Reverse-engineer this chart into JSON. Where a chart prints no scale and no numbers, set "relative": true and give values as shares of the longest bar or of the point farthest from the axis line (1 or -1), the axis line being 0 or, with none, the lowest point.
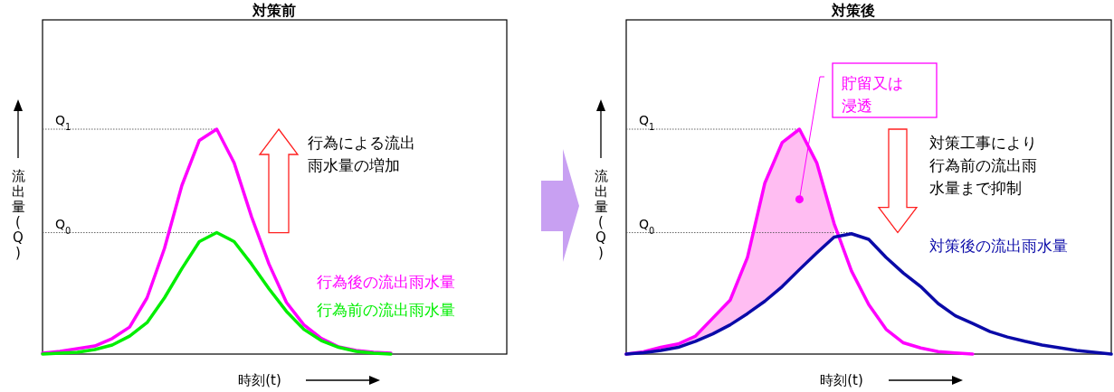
{
  "chart_data": [
    {
      "type": "line",
      "relative": true,
      "title": "対策前",
      "xlabel": "時刻(t)",
      "ylabel": "流出量(Q)",
      "categories": [
        null,
        null,
        null,
        null,
        null,
        null,
        null,
        null,
        null,
        null,
        null,
        null,
        null,
        null,
        null,
        null,
        null,
        null,
        null,
        null,
        null
      ],
      "series": [
        {
          "name": "行為後の流出雨水量",
          "color": "#ff00ff",
          "values": [
            0.004,
            0.012,
            0.024,
            0.036,
            0.069,
            0.12,
            0.25,
            0.47,
            0.75,
            0.95,
            1,
            0.85,
            0.61,
            0.4,
            0.23,
            0.13,
            0.07,
            0.032,
            0.016,
            0.008,
            0.004
          ]
        },
        {
          "name": "行為前の流出雨水量",
          "color": "#00ee00",
          "values": [
            0,
            0.004,
            0.008,
            0.02,
            0.04,
            0.08,
            0.14,
            0.25,
            0.38,
            0.5,
            0.54,
            0.5,
            0.4,
            0.29,
            0.19,
            0.11,
            0.06,
            0.03,
            0.012,
            0.004,
            0
          ]
        }
      ],
      "ref_lines": [
        {
          "axis": "y",
          "value": 1,
          "label": "Q$_{1}$",
          "line_style": "dotted"
        },
        {
          "axis": "y",
          "value": 0.54,
          "label": "Q$_{0}$",
          "line_style": "dotted"
        }
      ],
      "annotations": [
        "行為による流出雨水量の増加"
      ]
    },
    {
      "type": "line",
      "relative": true,
      "title": "対策後",
      "xlabel": "時刻(t)",
      "ylabel": "流出量(Q)",
      "categories": [
        null,
        null,
        null,
        null,
        null,
        null,
        null,
        null,
        null,
        null,
        null,
        null,
        null,
        null,
        null,
        null,
        null,
        null,
        null,
        null,
        null,
        null,
        null,
        null,
        null,
        null,
        null,
        null,
        null
      ],
      "series": [
        {
          "color": "#ff00ff",
          "values": [
            0,
            0.01,
            0.03,
            0.045,
            0.08,
            0.16,
            0.24,
            0.43,
            0.76,
            0.94,
            1,
            0.85,
            0.58,
            0.37,
            0.22,
            0.11,
            0.05,
            0.027,
            0.011,
            0.005,
            0,
            null,
            null,
            null,
            null,
            null,
            null,
            null,
            null
          ],
          "lower": [
            0,
            0.006,
            0.016,
            0.03,
            0.057,
            0.09,
            0.13,
            0.18,
            0.235,
            0.3,
            0.376,
            0.45,
            0.52,
            null,
            null,
            null,
            null,
            null,
            null,
            null,
            null,
            null,
            null,
            null,
            null,
            null,
            null,
            null,
            null
          ],
          "upper": [
            0,
            0.01,
            0.03,
            0.045,
            0.08,
            0.16,
            0.24,
            0.43,
            0.76,
            0.94,
            1,
            0.85,
            0.58,
            null,
            null,
            null,
            null,
            null,
            null,
            null,
            null,
            null,
            null,
            null,
            null,
            null,
            null,
            null,
            null
          ]
        },
        {
          "name": "対策後の流出雨水量",
          "color": "#0a0aa8",
          "values": [
            0,
            0.006,
            0.016,
            0.03,
            0.057,
            0.09,
            0.13,
            0.18,
            0.235,
            0.3,
            0.376,
            0.45,
            0.52,
            0.535,
            0.51,
            0.43,
            0.36,
            0.3,
            0.225,
            0.17,
            0.136,
            0.1,
            0.076,
            0.057,
            0.04,
            0.028,
            0.016,
            0.008,
            0
          ]
        }
      ],
      "ref_lines": [
        {
          "axis": "y",
          "value": 1,
          "label": "Q$_{1}$",
          "line_style": "dotted"
        },
        {
          "axis": "y",
          "value": 0.54,
          "label": "Q$_{0}$",
          "line_style": "dotted"
        }
      ],
      "annotations": [
        "貯留又は浸透",
        "対策工事により行為前の流出雨水量まで抑制"
      ]
    }
  ]
}
